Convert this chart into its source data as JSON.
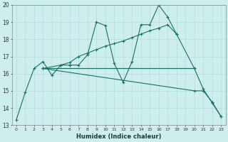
{
  "xlabel": "Humidex (Indice chaleur)",
  "bg_color": "#cdeeed",
  "grid_color": "#b8e0e0",
  "line_color": "#1a7060",
  "xlim": [
    -0.5,
    23.5
  ],
  "ylim": [
    13,
    20
  ],
  "xticks": [
    0,
    1,
    2,
    3,
    4,
    5,
    6,
    7,
    8,
    9,
    10,
    11,
    12,
    13,
    14,
    15,
    16,
    17,
    18,
    19,
    20,
    21,
    22,
    23
  ],
  "yticks": [
    13,
    14,
    15,
    16,
    17,
    18,
    19,
    20
  ],
  "line1_x": [
    0,
    1,
    2,
    3,
    4,
    5,
    6,
    7,
    8,
    9,
    10,
    11,
    12,
    13,
    14,
    15,
    16,
    17,
    18,
    20,
    21,
    22,
    23
  ],
  "line1_y": [
    13.3,
    14.9,
    16.3,
    16.7,
    15.9,
    16.5,
    16.5,
    16.5,
    17.1,
    19.0,
    18.8,
    16.6,
    15.5,
    16.7,
    18.85,
    18.85,
    20.0,
    19.3,
    18.3,
    16.3,
    15.1,
    14.3,
    13.5
  ],
  "line2_x": [
    3,
    5,
    6,
    7,
    8,
    9,
    10,
    11,
    12,
    13,
    14,
    15,
    16,
    17,
    18
  ],
  "line2_y": [
    16.3,
    16.5,
    16.65,
    17.0,
    17.2,
    17.4,
    17.6,
    17.75,
    17.9,
    18.1,
    18.3,
    18.5,
    18.65,
    18.85,
    18.3
  ],
  "line3_x": [
    3,
    20
  ],
  "line3_y": [
    16.3,
    16.3
  ],
  "line4_x": [
    3,
    20,
    21,
    22,
    23
  ],
  "line4_y": [
    16.3,
    15.0,
    15.0,
    14.35,
    13.5
  ]
}
